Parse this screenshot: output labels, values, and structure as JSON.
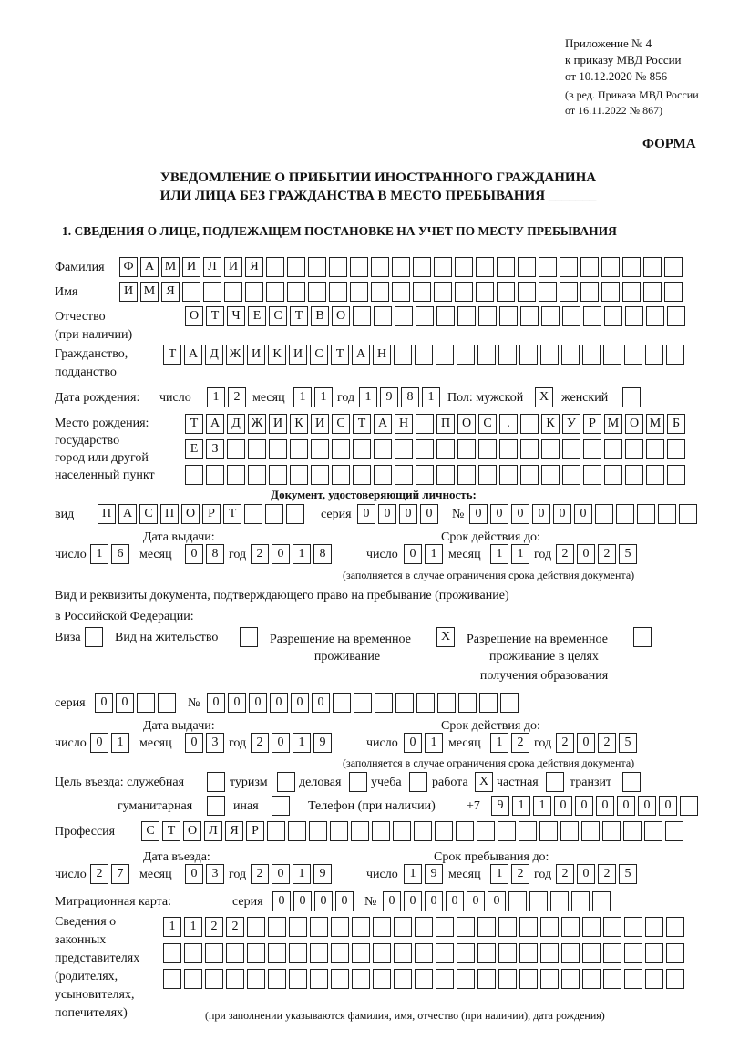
{
  "header": {
    "l1": "Приложение № 4",
    "l2": "к приказу МВД России",
    "l3": "от 10.12.2020 № 856",
    "l4": "(в ред. Приказа МВД России",
    "l5": "от 16.11.2022 № 867)",
    "forma": "ФОРМА",
    "title1": "УВЕДОМЛЕНИЕ О ПРИБЫТИИ ИНОСТРАННОГО ГРАЖДАНИНА",
    "title2": "ИЛИ ЛИЦА БЕЗ ГРАЖДАНСТВА В МЕСТО ПРЕБЫВАНИЯ _______",
    "section1": "1. СВЕДЕНИЯ О ЛИЦЕ, ПОДЛЕЖАЩЕМ ПОСТАНОВКЕ НА УЧЕТ ПО МЕСТУ ПРЕБЫВАНИЯ"
  },
  "labels": {
    "surname": "Фамилия",
    "name": "Имя",
    "patronymic": "Отчество",
    "patronymic2": "(при наличии)",
    "citizenship": "Гражданство,",
    "citizenship2": "подданство",
    "dob": "Дата рождения:",
    "day": "число",
    "month": "месяц",
    "year": "год",
    "sex": "Пол: мужской",
    "female": "женский",
    "birthplace": "Место рождения:",
    "bp2": "государство",
    "bp3": "город или другой",
    "bp4": "населенный пункт",
    "id_doc": "Документ, удостоверяющий личность:",
    "kind": "вид",
    "series": "серия",
    "number": "№",
    "issue_date": "Дата выдачи:",
    "valid_until": "Срок действия до:",
    "valid_note": "(заполняется в случае ограничения срока действия документа)",
    "right_doc1": "Вид и реквизиты документа, подтверждающего право на пребывание (проживание)",
    "right_doc2": "в Российской Федерации:",
    "visa": "Виза",
    "residence": "Вид на жительство",
    "trp1": "Разрешение на временное",
    "trp2": "проживание",
    "trpe1": "Разрешение на временное",
    "trpe2": "проживание в целях",
    "trpe3": "получения образования",
    "purpose": "Цель въезда: служебная",
    "tourism": "туризм",
    "business": "деловая",
    "study": "учеба",
    "work": "работа",
    "private": "частная",
    "transit": "транзит",
    "humanitarian": "гуманитарная",
    "other": "иная",
    "phone": "Телефон (при наличии)",
    "phone_prefix": "+7",
    "profession": "Профессия",
    "entry_date": "Дата въезда:",
    "stay_until": "Срок пребывания до:",
    "migration_card": "Миграционная карта:",
    "reps1": "Сведения о",
    "reps2": "законных",
    "reps3": "представителях",
    "reps4": "(родителях,",
    "reps5": "усыновителях,",
    "reps6": "попечителях)",
    "reps_note": "(при заполнении указываются фамилия, имя, отчество (при наличии), дата рождения)"
  },
  "values": {
    "surname": "ФАМИЛИЯ",
    "name": "ИМЯ",
    "patronymic": "ОТЧЕСТВО",
    "citizenship": "ТАДЖИКИСТАН",
    "dob_day": "12",
    "dob_month": "11",
    "dob_year": "1981",
    "male": "X",
    "female": "",
    "bp1": "ТАДЖИКИСТАН ПОС. КУРМОМБ",
    "bp2": "ЕЗ",
    "bp3": "",
    "doc_kind": "ПАСПОРТ",
    "doc_series": "0000",
    "doc_number": "000000",
    "doc_issue_day": "16",
    "doc_issue_month": "08",
    "doc_issue_year": "2018",
    "doc_valid_day": "01",
    "doc_valid_month": "11",
    "doc_valid_year": "2025",
    "visa": "",
    "residence": "",
    "trp": "X",
    "trpe": "",
    "r_series": "00",
    "r_number": "000000",
    "r_issue_day": "01",
    "r_issue_month": "03",
    "r_issue_year": "2019",
    "r_valid_day": "01",
    "r_valid_month": "12",
    "r_valid_year": "2025",
    "p_service": "",
    "p_tourism": "",
    "p_business": "",
    "p_study": "",
    "p_work": "X",
    "p_private": "",
    "p_transit": "",
    "p_humanitarian": "",
    "p_other": "",
    "phone": "911000000",
    "profession": "СТОЛЯР",
    "entry_day": "27",
    "entry_month": "03",
    "entry_year": "2019",
    "stay_day": "19",
    "stay_month": "12",
    "stay_year": "2025",
    "mc_series": "0000",
    "mc_number": "000000",
    "reps1": "1122",
    "reps2": "",
    "reps3": ""
  }
}
